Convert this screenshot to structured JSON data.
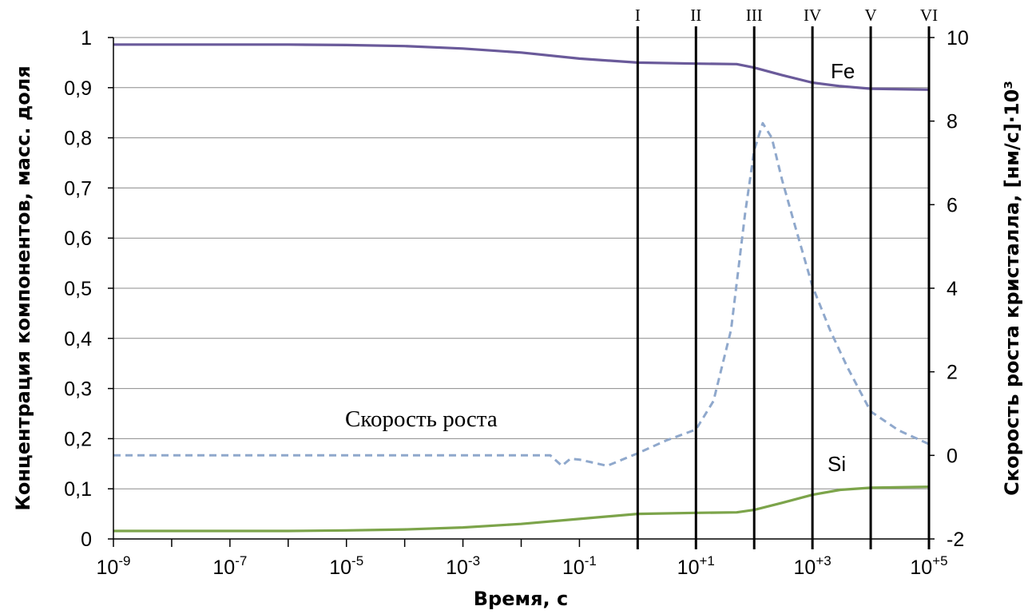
{
  "chart_data": {
    "type": "line",
    "xlabel": "Время, с",
    "ylabel": "Концентрация компонентов, масс. доля",
    "y2label": "Скорость роста кристалла, [нм/с]·10³",
    "x_scale": "log",
    "xlim": [
      1e-09,
      100000.0
    ],
    "ylim": [
      0,
      1
    ],
    "y2lim": [
      -2,
      10
    ],
    "grid": "horizontal",
    "x_ticks": [
      {
        "value": 1e-09,
        "base": "10",
        "exp": "-9"
      },
      {
        "value": 1e-07,
        "base": "10",
        "exp": "-7"
      },
      {
        "value": 1e-05,
        "base": "10",
        "exp": "-5"
      },
      {
        "value": 0.001,
        "base": "10",
        "exp": "-3"
      },
      {
        "value": 0.1,
        "base": "10",
        "exp": "-1"
      },
      {
        "value": 10,
        "base": "10",
        "exp": "+1"
      },
      {
        "value": 1000,
        "base": "10",
        "exp": "+3"
      },
      {
        "value": 100000,
        "base": "10",
        "exp": "+5"
      }
    ],
    "y_ticks": [
      {
        "value": 0,
        "label": "0"
      },
      {
        "value": 0.1,
        "label": "0,1"
      },
      {
        "value": 0.2,
        "label": "0,2"
      },
      {
        "value": 0.3,
        "label": "0,3"
      },
      {
        "value": 0.4,
        "label": "0,4"
      },
      {
        "value": 0.5,
        "label": "0,5"
      },
      {
        "value": 0.6,
        "label": "0,6"
      },
      {
        "value": 0.7,
        "label": "0,7"
      },
      {
        "value": 0.8,
        "label": "0,8"
      },
      {
        "value": 0.9,
        "label": "0,9"
      },
      {
        "value": 1,
        "label": "1"
      }
    ],
    "y2_ticks": [
      {
        "value": -2,
        "label": "-2"
      },
      {
        "value": 0,
        "label": "0"
      },
      {
        "value": 2,
        "label": "2"
      },
      {
        "value": 4,
        "label": "4"
      },
      {
        "value": 6,
        "label": "6"
      },
      {
        "value": 8,
        "label": "8"
      },
      {
        "value": 10,
        "label": "10"
      }
    ],
    "stage_lines": [
      {
        "label": "I",
        "x": 1
      },
      {
        "label": "II",
        "x": 10
      },
      {
        "label": "III",
        "x": 100
      },
      {
        "label": "IV",
        "x": 1000
      },
      {
        "label": "V",
        "x": 10000
      },
      {
        "label": "VI",
        "x": 100000
      }
    ],
    "series": [
      {
        "name": "Fe",
        "axis": "left",
        "color": "#6a5a9a",
        "style": "solid",
        "points": [
          [
            1e-09,
            0.986
          ],
          [
            1e-06,
            0.986
          ],
          [
            1e-05,
            0.985
          ],
          [
            0.0001,
            0.983
          ],
          [
            0.001,
            0.978
          ],
          [
            0.01,
            0.97
          ],
          [
            0.1,
            0.958
          ],
          [
            1,
            0.95
          ],
          [
            10,
            0.948
          ],
          [
            50,
            0.947
          ],
          [
            100,
            0.94
          ],
          [
            300,
            0.925
          ],
          [
            1000,
            0.91
          ],
          [
            3000,
            0.903
          ],
          [
            10000,
            0.898
          ],
          [
            100000,
            0.896
          ]
        ]
      },
      {
        "name": "Si",
        "axis": "left",
        "color": "#7ca44a",
        "style": "solid",
        "points": [
          [
            1e-09,
            0.016
          ],
          [
            1e-06,
            0.016
          ],
          [
            1e-05,
            0.017
          ],
          [
            0.0001,
            0.019
          ],
          [
            0.001,
            0.023
          ],
          [
            0.01,
            0.03
          ],
          [
            0.1,
            0.04
          ],
          [
            1,
            0.05
          ],
          [
            10,
            0.052
          ],
          [
            50,
            0.053
          ],
          [
            100,
            0.058
          ],
          [
            300,
            0.072
          ],
          [
            1000,
            0.088
          ],
          [
            3000,
            0.098
          ],
          [
            10000,
            0.102
          ],
          [
            100000,
            0.104
          ]
        ]
      },
      {
        "name": "Скорость роста",
        "axis": "right",
        "color": "#8fa8cc",
        "style": "dashed",
        "points": [
          [
            1e-09,
            0
          ],
          [
            0.0316,
            0
          ],
          [
            0.05,
            -0.25
          ],
          [
            0.07,
            -0.08
          ],
          [
            0.1,
            -0.1
          ],
          [
            0.3,
            -0.25
          ],
          [
            1,
            0.05
          ],
          [
            3,
            0.35
          ],
          [
            10,
            0.62
          ],
          [
            20,
            1.3
          ],
          [
            40,
            3.0
          ],
          [
            70,
            5.8
          ],
          [
            100,
            7.3
          ],
          [
            140,
            7.95
          ],
          [
            200,
            7.6
          ],
          [
            300,
            6.6
          ],
          [
            500,
            5.5
          ],
          [
            1000,
            4.05
          ],
          [
            2000,
            3.0
          ],
          [
            4000,
            2.1
          ],
          [
            10000,
            1.05
          ],
          [
            30000,
            0.6
          ],
          [
            100000,
            0.27
          ]
        ]
      }
    ],
    "labels": {
      "fe": "Fe",
      "si": "Si",
      "growth": "Скорость роста"
    }
  }
}
